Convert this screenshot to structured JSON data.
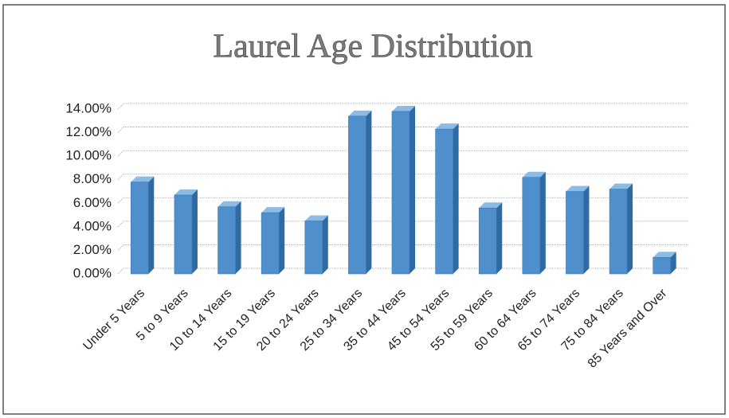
{
  "chart_data": {
    "type": "bar",
    "title": "Laurel Age Distribution",
    "categories": [
      "Under 5 Years",
      "5 to 9 Years",
      "10 to 14 Years",
      "15 to 19 Years",
      "20 to 24 Years",
      "25 to 34 Years",
      "35 to 44 Years",
      "45 to 54 Years",
      "55 to 59 Years",
      "60 to 64 Years",
      "65 to 74 Years",
      "75 to 84 Years",
      "85 Years and Over"
    ],
    "values": [
      7.8,
      6.7,
      5.7,
      5.2,
      4.5,
      13.4,
      13.8,
      12.3,
      5.6,
      8.2,
      7.0,
      7.2,
      1.4
    ],
    "color": "#4f8fcc",
    "ylim": [
      0,
      14
    ],
    "yticks": [
      {
        "value": 0,
        "label": "0.00%"
      },
      {
        "value": 2,
        "label": "2.00%"
      },
      {
        "value": 4,
        "label": "4.00%"
      },
      {
        "value": 6,
        "label": "6.00%"
      },
      {
        "value": 8,
        "label": "8.00%"
      },
      {
        "value": 10,
        "label": "10.00%"
      },
      {
        "value": 12,
        "label": "12.00%"
      },
      {
        "value": 14,
        "label": "14.00%"
      }
    ],
    "grid": true
  }
}
